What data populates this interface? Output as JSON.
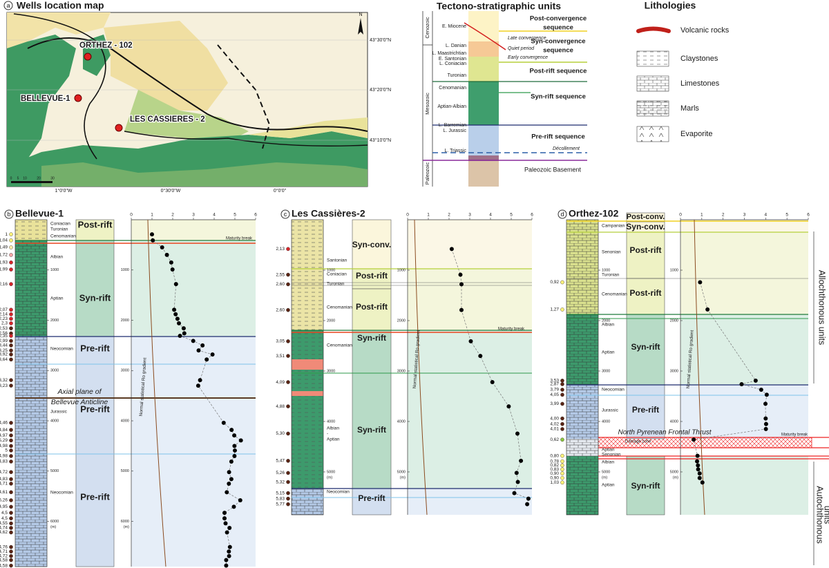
{
  "panel_a": {
    "label": "a",
    "title": "Wells location map",
    "wells": [
      "ORTHEZ - 102",
      "BELLEVUE-1",
      "LES CASSIERES - 2"
    ],
    "lat_labels": [
      "43°30'0\"N",
      "43°20'0\"N",
      "43°10'0\"N"
    ],
    "lon_labels": [
      "1°0'0\"W",
      "0°30'0\"W",
      "0°0'0\""
    ],
    "north": "N",
    "scale_labels": [
      "0",
      "5",
      "10",
      "20",
      "30"
    ]
  },
  "tectono": {
    "title": "Tectono-stratigraphic units",
    "eras": [
      "Cenozoic",
      "Mesozoic",
      "Paleozoic"
    ],
    "stages": [
      "E. Miocene",
      "L. Danian",
      "L. Maastrichtian",
      "E. Santonian",
      "L. Coniacian",
      "Turonian",
      "Cenomanian",
      "Aptian-Albian",
      "L. Barremian",
      "L. Jurassic",
      "L. Triassic"
    ],
    "sequences": [
      [
        "Post-convergence",
        "sequence"
      ],
      [
        "Syn-convergence",
        "sequence"
      ],
      [
        "Post-rift sequence"
      ],
      [
        "Syn-rift sequence"
      ],
      [
        "Pre-rift sequence"
      ]
    ],
    "notes": [
      "Late convergence",
      "Quiet period",
      "Early convergence",
      "Décollement"
    ],
    "basement": "Paleozoic Basement"
  },
  "lithologies": {
    "title": "Lithologies",
    "items": [
      "Volcanic rocks",
      "Claystones",
      "Limestones",
      "Marls",
      "Evaporite"
    ]
  },
  "wells": [
    {
      "type": "scatter",
      "label": "b",
      "name": "Bellevue-1",
      "xlim": [
        0,
        6
      ],
      "xticks": [
        0,
        1,
        2,
        3,
        4,
        5,
        6
      ],
      "ylim": [
        0,
        6900
      ],
      "yticks": [
        1000,
        2000,
        3000,
        4000,
        5000,
        6000
      ],
      "depth_unit": "(m)",
      "stratigraphy": [
        "Coniacian",
        "Turonian",
        "Cenomanian",
        "Albian",
        "Aptian",
        "Neocomian",
        "Jurassic",
        "Neocomian"
      ],
      "units": [
        "Post-rift",
        "Syn-rift",
        "Pre-rift",
        "Pre-rift",
        "Pre-rift"
      ],
      "annotations": [
        "Maturity break",
        "Axial plane of",
        "Bellevue Anticline"
      ],
      "gradient_label": "Normal statistical Ro gradient",
      "x": [
        1,
        1.04,
        1.49,
        1.72,
        1.93,
        1.99,
        2.16,
        2.07,
        2.14,
        2.23,
        2.3,
        2.53,
        2.56,
        2.35,
        2.99,
        3.44,
        3.25,
        3.92,
        3.64,
        3.32,
        3.23,
        4.46,
        4.84,
        4.97,
        5.29,
        4.98,
        5,
        4.98,
        4.83,
        4.72,
        4.83,
        4.71,
        4.61,
        5.26,
        4.95,
        4.5,
        4.5,
        4.55,
        4.74,
        4.62,
        4.76,
        4.71,
        4.72,
        4.58,
        4.58
      ],
      "x_labels": [
        "1",
        "1,04",
        "1,49",
        "1,72",
        "1,93",
        "1,99",
        "2,16",
        "2,07",
        "2,14",
        "2,23",
        "2,3",
        "2,53",
        "2,56",
        "2,35",
        "2,99",
        "3,44",
        "3,25",
        "3,92",
        "3,64",
        "3,32",
        "3,23",
        "4,46",
        "4,84",
        "4,97",
        "5,29",
        "4,98",
        "5",
        "4,98",
        "4,83",
        "4,72",
        "4,83",
        "4,71",
        "4,61",
        "5,26",
        "4,95",
        "4,5",
        "4,5",
        "4,55",
        "4,74",
        "4,62",
        "4,76",
        "4,71",
        "4,72",
        "4,58",
        "4,58"
      ],
      "values": [
        290,
        410,
        550,
        700,
        850,
        990,
        1280,
        1790,
        1880,
        1970,
        2060,
        2160,
        2260,
        2310,
        2410,
        2500,
        2600,
        2680,
        2780,
        3190,
        3300,
        4040,
        4180,
        4290,
        4390,
        4500,
        4590,
        4700,
        4810,
        5020,
        5160,
        5250,
        5420,
        5580,
        5710,
        5830,
        5940,
        6040,
        6130,
        6220,
        6510,
        6600,
        6690,
        6770,
        6880
      ]
    },
    {
      "type": "scatter",
      "label": "c",
      "name": "Les Cassières-2",
      "xlim": [
        0,
        6
      ],
      "xticks": [
        0,
        1,
        2,
        3,
        4,
        5,
        6
      ],
      "ylim": [
        0,
        5850
      ],
      "yticks": [
        1000,
        2000,
        3000,
        4000,
        5000
      ],
      "depth_unit": "(m)",
      "stratigraphy": [
        "Santonian",
        "Coniacian",
        "Turonian",
        "Cenomanian",
        "Cenomanian",
        "Albian",
        "-",
        "Aptian",
        "Neocomian"
      ],
      "units": [
        "Syn-conv.",
        "Post-rift",
        "Post-rift",
        "Syn-rift",
        "Syn-rift",
        "Pre-rift"
      ],
      "annotations": [
        "Maturity break"
      ],
      "gradient_label": "Normal statistical Ro gradient",
      "x": [
        2.13,
        2.55,
        2.6,
        2.6,
        3.05,
        3.51,
        4.09,
        4.88,
        5.3,
        5.47,
        5.26,
        5.32,
        5.15,
        5.83,
        5.77
      ],
      "x_labels": [
        "2,13",
        "2,55",
        "2,60",
        "2,60",
        "3,05",
        "3,51",
        "4,09",
        "4,88",
        "5,30",
        "5,47",
        "5,26",
        "5,32",
        "5,15",
        "5,83",
        "5,77"
      ],
      "values": [
        580,
        1090,
        1280,
        1790,
        2410,
        2700,
        3220,
        3700,
        4240,
        4780,
        5020,
        5200,
        5420,
        5530,
        5640
      ]
    },
    {
      "type": "scatter",
      "label": "d",
      "name": "Orthez-102",
      "xlim": [
        0,
        6
      ],
      "xticks": [
        0,
        1,
        2,
        3,
        4,
        5,
        6
      ],
      "ylim": [
        0,
        5850
      ],
      "yticks": [
        1000,
        2000,
        3000,
        4000,
        5000
      ],
      "depth_unit": "(m)",
      "stratigraphy": [
        "Campanian",
        "Senonian",
        "Turonian",
        "Cenomanian",
        "Albian",
        "Aptian",
        "Neocomian",
        "Jurassic",
        "Aptian",
        "Senonian",
        "Albian",
        "Aptian"
      ],
      "units": [
        "Post-conv.",
        "Syn-conv.",
        "Post-rift",
        "Post-rift",
        "Syn-rift",
        "Pre-rift",
        "Syn-rift"
      ],
      "annotations": [
        "North Pyrenean Frontal Thrust",
        "Damage zone",
        "Maturity break"
      ],
      "side_labels": [
        "Allochthonous units",
        "Autochthonous",
        "units"
      ],
      "gradient_label": "Normal statistical Ro gradient",
      "x": [
        0.92,
        1.27,
        3.53,
        2.87,
        3.79,
        4.05,
        3.99,
        4,
        4.02,
        4.01,
        0.62,
        0.8,
        0.78,
        0.82,
        0.83,
        0.9,
        0.9,
        1.03
      ],
      "x_labels": [
        "0,92",
        "1,27",
        "3,53",
        "2,87",
        "3,79",
        "4,05",
        "3,99",
        "4,00",
        "4,02",
        "4,01",
        "0,62",
        "0,80",
        "0,78",
        "0,82",
        "0,83",
        "0,90",
        "0,90",
        "1,03"
      ],
      "values": [
        1240,
        1780,
        3190,
        3260,
        3370,
        3470,
        3650,
        3940,
        4050,
        4150,
        4360,
        4680,
        4790,
        4870,
        4950,
        5030,
        5120,
        5210
      ]
    }
  ]
}
